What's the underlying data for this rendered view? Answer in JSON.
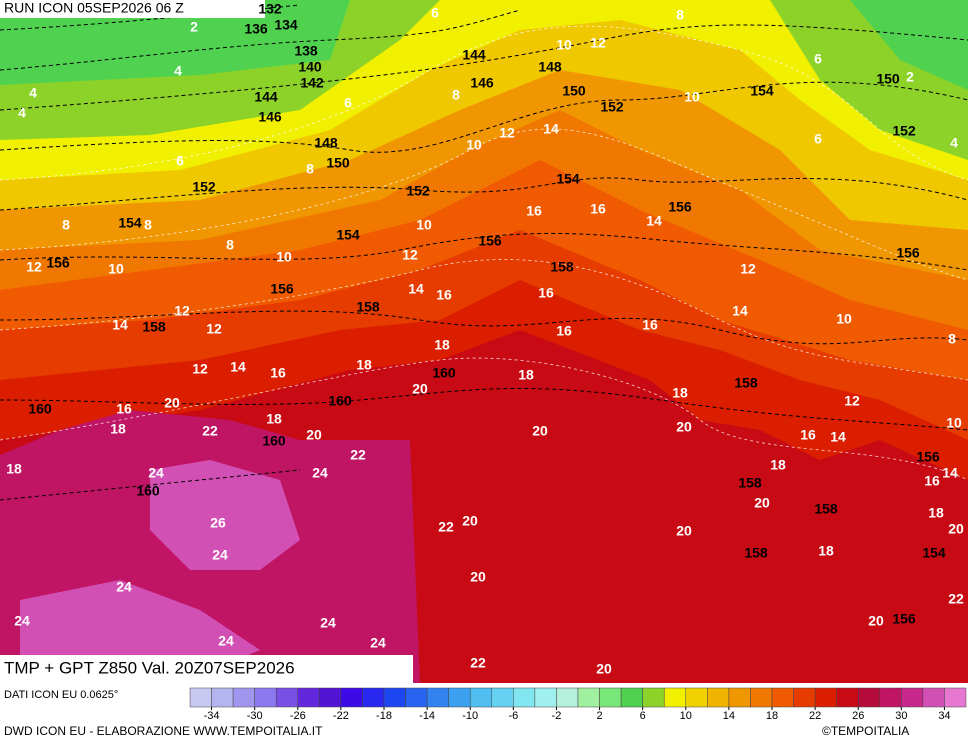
{
  "header": {
    "run": "RUN ICON 05SEP2026 06 Z"
  },
  "map": {
    "temperature_labels": [
      6,
      2,
      4,
      4,
      4,
      6,
      8,
      10,
      12,
      8,
      10,
      6,
      2,
      6,
      4,
      6,
      8,
      10,
      12,
      14,
      16,
      16,
      14,
      8,
      8,
      8,
      10,
      10,
      12,
      12,
      10,
      14,
      16,
      16,
      16,
      16,
      12,
      14,
      10,
      8,
      12,
      14,
      12,
      12,
      14,
      16,
      18,
      18,
      20,
      18,
      16,
      18,
      20,
      22,
      18,
      20,
      22,
      20,
      18,
      20,
      12,
      16,
      14,
      10,
      18,
      14,
      16,
      18,
      20,
      20,
      20,
      18,
      18,
      24,
      24,
      26,
      24,
      22,
      20,
      20,
      24,
      24,
      24,
      24,
      24,
      20,
      22,
      22,
      20
    ],
    "height_labels": [
      132,
      134,
      136,
      138,
      140,
      142,
      144,
      144,
      146,
      146,
      148,
      148,
      150,
      150,
      152,
      152,
      152,
      150,
      154,
      152,
      154,
      154,
      154,
      156,
      156,
      156,
      156,
      158,
      158,
      158,
      160,
      160,
      160,
      160,
      160,
      158,
      158,
      158,
      158,
      156,
      154,
      156,
      156
    ]
  },
  "footer": {
    "title": "TMP + GPT Z850 Val. 20Z07SEP2026",
    "source": "DATI ICON EU 0.0625°",
    "credit": "DWD ICON EU - ELABORAZIONE WWW.TEMPOITALIA.IT",
    "copyright": "©TEMPOITALIA"
  },
  "colorbar": {
    "ticks": [
      -34,
      -30,
      -26,
      -22,
      -18,
      -14,
      -10,
      -6,
      -2,
      2,
      6,
      10,
      14,
      18,
      22,
      26,
      30,
      34
    ],
    "range": [
      -36,
      36
    ],
    "colors": [
      "#c8c8f0",
      "#b4b4f0",
      "#a096f0",
      "#8c78f0",
      "#7850e6",
      "#6428dc",
      "#5014d2",
      "#3c0ae6",
      "#2828f0",
      "#1e46f0",
      "#2864f0",
      "#3282f0",
      "#3ca0f0",
      "#50bef0",
      "#64d2f0",
      "#82e6f0",
      "#a0f0f0",
      "#b4f0dc",
      "#a0f0a0",
      "#78e678",
      "#50d250",
      "#8cd228",
      "#f0f000",
      "#f0d200",
      "#f0b400",
      "#f09600",
      "#f07800",
      "#f05a00",
      "#e63c00",
      "#dc1e00",
      "#c80a14",
      "#b40a3c",
      "#c01464",
      "#c8288c",
      "#d250b4",
      "#e678d2"
    ]
  }
}
